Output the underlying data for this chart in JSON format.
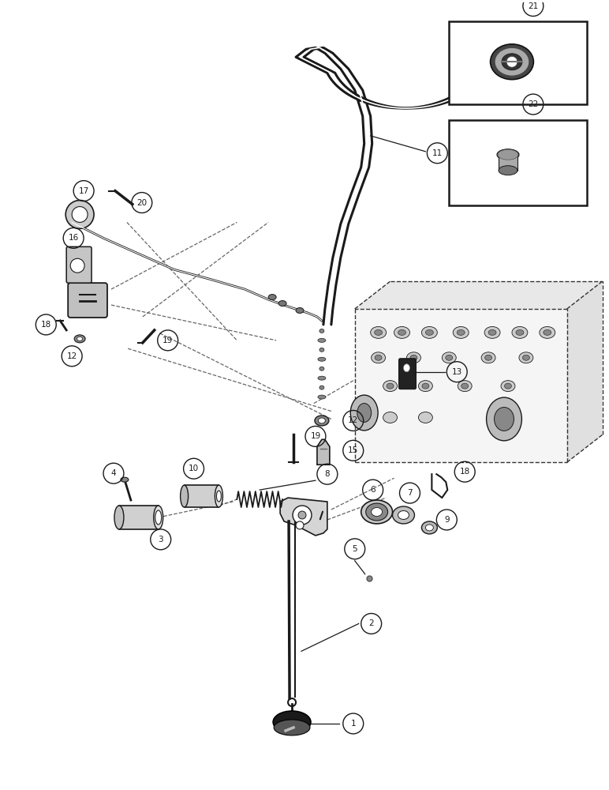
{
  "bg_color": "#ffffff",
  "line_color": "#1a1a1a",
  "figsize": [
    7.72,
    10.0
  ],
  "dpi": 100,
  "title_fontsize": 8
}
